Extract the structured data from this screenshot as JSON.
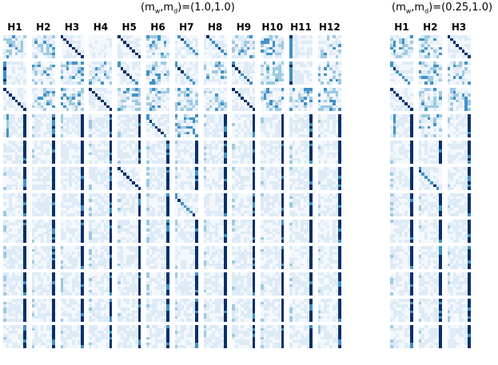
{
  "figure": {
    "left_group": {
      "title": "(m_w,m_d)=(1.0,1.0)",
      "title_parts": {
        "open": "(m",
        "sub1": "w",
        "comma": ",m",
        "sub2": "d",
        "close": ")=(1.0,1.0)"
      },
      "heads": [
        "H1",
        "H2",
        "H3",
        "H4",
        "H5",
        "H6",
        "H7",
        "H8",
        "H9",
        "H10",
        "H11",
        "H12"
      ]
    },
    "right_group": {
      "title": "(m_w,m_d)=(0.25,1.0)",
      "title_parts": {
        "open": "(m",
        "sub1": "w",
        "comma": ",m",
        "sub2": "d",
        "close": ")=(0.25,1.0)"
      },
      "heads": [
        "H1",
        "H2",
        "H3"
      ]
    },
    "layers": 12,
    "colormap": [
      "#f7fbff",
      "#deebf7",
      "#9ecae1",
      "#4292c6",
      "#08306b"
    ],
    "pattern_legend": {
      "d": "diagonal",
      "b": "previous-token",
      "f": "next-token",
      "c": "first-column",
      "l": "last-column",
      "v": "column",
      "s": "scattered",
      "e": "empty"
    },
    "patterns_left": [
      [
        "s",
        "s",
        "d",
        "e",
        "d",
        "s",
        "f",
        "f",
        "s",
        "s",
        "c",
        "s"
      ],
      [
        "c",
        "s",
        "s",
        "s",
        "b",
        "s",
        "b",
        "s",
        "b",
        "s",
        "c",
        "s"
      ],
      [
        "d",
        "s",
        "s",
        "d",
        "s",
        "s",
        "s",
        "s",
        "d",
        "s",
        "s",
        "s"
      ],
      [
        "v",
        "l",
        "l",
        "l",
        "l",
        "b",
        "s",
        "l",
        "l",
        "l",
        "l",
        "l"
      ],
      [
        "l",
        "l",
        "l",
        "l",
        "l",
        "l",
        "l",
        "l",
        "l",
        "l",
        "l",
        "l"
      ],
      [
        "l",
        "l",
        "l",
        "l",
        "d",
        "l",
        "l",
        "l",
        "l",
        "l",
        "l",
        "l"
      ],
      [
        "l",
        "l",
        "l",
        "l",
        "l",
        "l",
        "b",
        "l",
        "l",
        "l",
        "l",
        "l"
      ],
      [
        "l",
        "l",
        "l",
        "l",
        "l",
        "l",
        "l",
        "l",
        "l",
        "l",
        "l",
        "l"
      ],
      [
        "l",
        "l",
        "l",
        "l",
        "l",
        "l",
        "l",
        "l",
        "l",
        "l",
        "l",
        "l"
      ],
      [
        "l",
        "l",
        "l",
        "l",
        "l",
        "l",
        "l",
        "l",
        "l",
        "l",
        "l",
        "l"
      ],
      [
        "l",
        "l",
        "l",
        "l",
        "l",
        "l",
        "l",
        "l",
        "l",
        "l",
        "l",
        "l"
      ],
      [
        "l",
        "l",
        "l",
        "l",
        "l",
        "l",
        "l",
        "l",
        "l",
        "l",
        "l",
        "l"
      ]
    ],
    "patterns_right": [
      [
        "s",
        "s",
        "d"
      ],
      [
        "b",
        "s",
        "s"
      ],
      [
        "d",
        "s",
        "s"
      ],
      [
        "v",
        "s",
        "l"
      ],
      [
        "l",
        "l",
        "l"
      ],
      [
        "l",
        "b",
        "l"
      ],
      [
        "l",
        "l",
        "l"
      ],
      [
        "l",
        "l",
        "l"
      ],
      [
        "l",
        "l",
        "l"
      ],
      [
        "l",
        "l",
        "l"
      ],
      [
        "l",
        "l",
        "l"
      ],
      [
        "l",
        "l",
        "l"
      ]
    ]
  }
}
